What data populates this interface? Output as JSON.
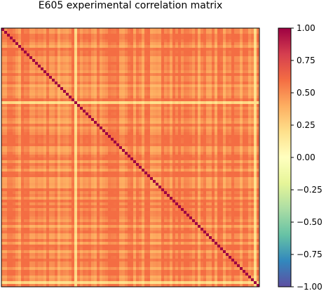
{
  "chart_data": {
    "type": "heatmap",
    "title": "E605 experimental correlation matrix",
    "colormap": "Spectral_r",
    "n": 92,
    "diagonal": 1.0,
    "vmin": -1.0,
    "vmax": 1.0,
    "colorbar": {
      "ticks": [
        1.0,
        0.75,
        0.5,
        0.25,
        0.0,
        -0.25,
        -0.5,
        -0.75,
        -1.0
      ],
      "tick_labels": [
        "1.00",
        "0.75",
        "0.50",
        "0.25",
        "0.00",
        "−0.25",
        "−0.50",
        "−0.75",
        "−1.00"
      ]
    },
    "off_diagonal_range": [
      0.3,
      0.6
    ],
    "low_correlation_indices": [
      26,
      90
    ],
    "grid": false,
    "axes_ticks_visible": false
  }
}
